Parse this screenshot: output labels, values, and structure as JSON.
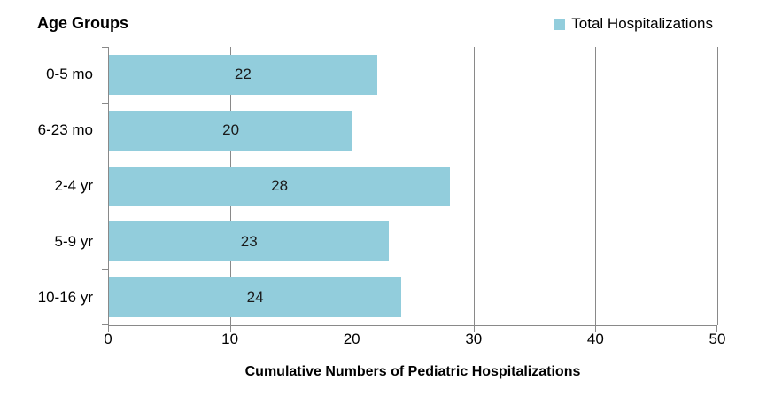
{
  "chart_data": {
    "type": "bar",
    "orientation": "horizontal",
    "title": "Age Groups",
    "xlabel": "Cumulative Numbers of Pediatric Hospitalizations",
    "categories": [
      "0-5 mo",
      "6-23 mo",
      "2-4 yr",
      "5-9 yr",
      "10-16 yr"
    ],
    "series": [
      {
        "name": "Total Hospitalizations",
        "values": [
          22,
          20,
          28,
          23,
          24
        ]
      }
    ],
    "xlim": [
      0,
      50
    ],
    "x_ticks": [
      0,
      10,
      20,
      30,
      40,
      50
    ],
    "grid": "vertical-gridlines",
    "legend_position": "top-right",
    "bar_labels_shown": true
  },
  "colors": {
    "bar": "#92CDDC",
    "grid": "#898989",
    "axis": "#898989",
    "text": "#000000"
  }
}
